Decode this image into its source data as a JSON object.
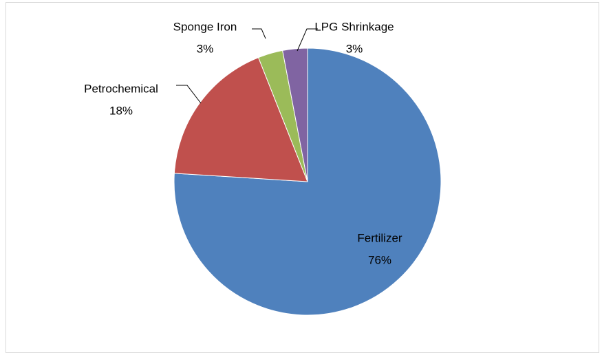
{
  "chart_data": {
    "type": "pie",
    "categories": [
      "Fertilizer",
      "Petrochemical",
      "Sponge Iron",
      "LPG Shrinkage"
    ],
    "values": [
      76,
      18,
      3,
      3
    ],
    "value_labels": [
      "76%",
      "18%",
      "3%",
      "3%"
    ],
    "colors": [
      "#4f81bd",
      "#c0504d",
      "#9bbb59",
      "#8064a2"
    ]
  }
}
